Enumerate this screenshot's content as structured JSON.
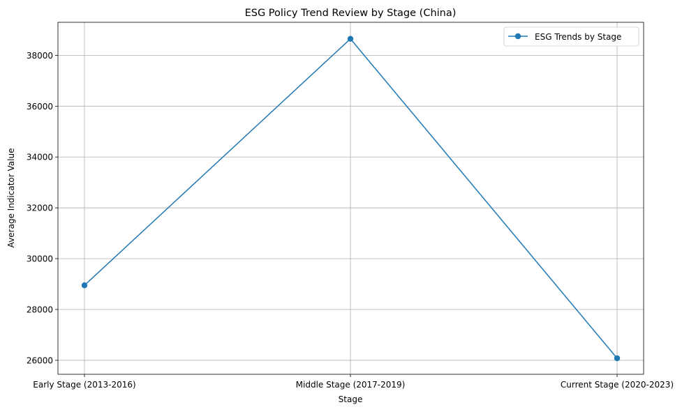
{
  "chart_data": {
    "type": "line",
    "title": "ESG Policy Trend Review by Stage (China)",
    "xlabel": "Stage",
    "ylabel": "Average Indicator Value",
    "categories": [
      "Early Stage (2013-2016)",
      "Middle Stage (2017-2019)",
      "Current Stage (2020-2023)"
    ],
    "series": [
      {
        "name": "ESG Trends by Stage",
        "values": [
          28950,
          38650,
          26080
        ],
        "color": "#1f77b4",
        "marker": "circle"
      }
    ],
    "ylim": [
      25450,
      39300
    ],
    "yticks": [
      26000,
      28000,
      30000,
      32000,
      34000,
      36000,
      38000
    ],
    "grid": true,
    "legend_position": "top-right"
  }
}
